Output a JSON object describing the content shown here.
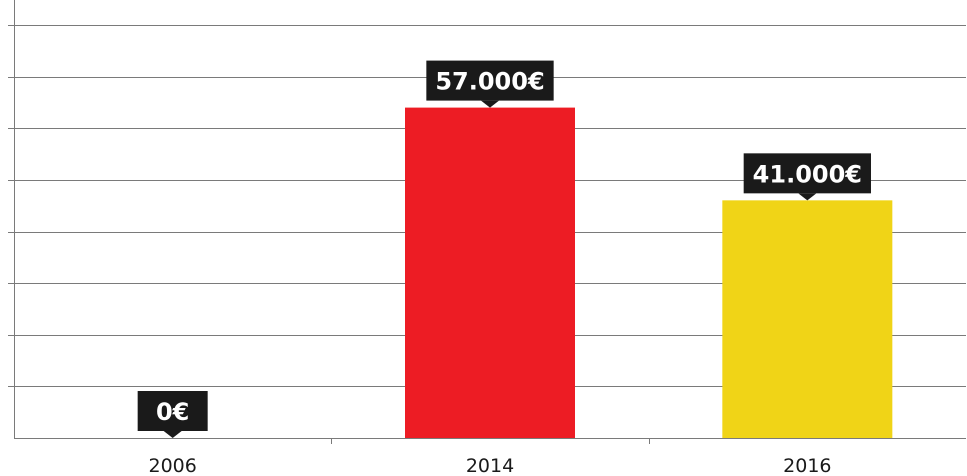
{
  "chart_data": {
    "type": "bar",
    "categories": [
      "2006",
      "2014",
      "2016"
    ],
    "values": [
      0,
      57000,
      41000
    ],
    "data_labels": [
      "0€",
      "57.000€",
      "41.000€"
    ],
    "colors": [
      "#1a1a1a",
      "#ed1c24",
      "#f0d417"
    ],
    "title": "",
    "xlabel": "",
    "ylabel": "",
    "ylim": [
      0,
      71250
    ],
    "y_grid_step": 8906.25,
    "grid": true,
    "legend": "none"
  }
}
